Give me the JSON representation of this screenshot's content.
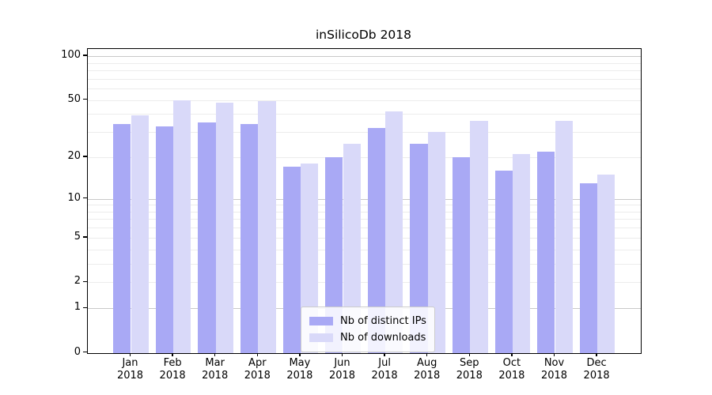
{
  "title": "inSilicoDb 2018",
  "chart_data": {
    "type": "bar",
    "title": "inSilicoDb 2018",
    "categories": [
      "Jan",
      "Feb",
      "Mar",
      "Apr",
      "May",
      "Jun",
      "Jul",
      "Aug",
      "Sep",
      "Oct",
      "Nov",
      "Dec"
    ],
    "year_label": "2018",
    "series": [
      {
        "name": "Nb of distinct IPs",
        "color": "#a9a9f5",
        "values": [
          34,
          33,
          35,
          34,
          17,
          20,
          32,
          25,
          20,
          16,
          22,
          13
        ]
      },
      {
        "name": "Nb of downloads",
        "color": "#d9d9f9",
        "values": [
          39,
          50,
          48,
          49,
          18,
          25,
          42,
          30,
          36,
          21,
          36,
          15
        ]
      }
    ],
    "xlabel": "",
    "ylabel": "",
    "y_axis": {
      "scale": "log1p",
      "ticks": [
        0,
        1,
        2,
        5,
        10,
        20,
        50,
        100
      ],
      "major_gridlines": [
        1,
        10,
        100
      ],
      "minor_gridlines": [
        2,
        3,
        4,
        5,
        6,
        7,
        8,
        9,
        20,
        30,
        40,
        50,
        60,
        70,
        80,
        90
      ],
      "range": [
        0,
        112
      ]
    },
    "grid": true,
    "legend_position": "bottom-center"
  },
  "legend": {
    "entries": [
      "Nb of distinct IPs",
      "Nb of downloads"
    ]
  }
}
